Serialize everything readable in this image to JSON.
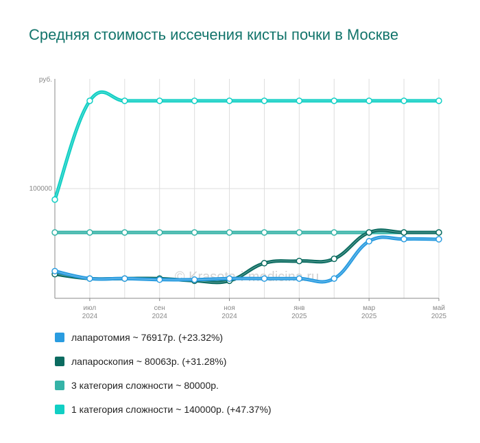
{
  "title": "Средняя стоимость иссечения кисты почки в Москве",
  "watermark": "© Krasota-i-medicina.ru",
  "colors": {
    "laparotomy": "#2a9ce0",
    "laparoscopy": "#0b6b60",
    "cat3": "#35b3a7",
    "cat1": "#11cfc4",
    "grid": "#dddddd",
    "axis": "#888888"
  },
  "legend": [
    {
      "label": "лапаротомия ~ 76917р. (+23.32%)",
      "color": "#2a9ce0"
    },
    {
      "label": "лапароскопия ~ 80063р. (+31.28%)",
      "color": "#0b6b60"
    },
    {
      "label": "3 категория сложности ~ 80000р.",
      "color": "#35b3a7"
    },
    {
      "label": "1 категория сложности ~ 140000р. (+47.37%)",
      "color": "#11cfc4"
    }
  ],
  "chart_data": {
    "type": "line",
    "title": "Средняя стоимость иссечения кисты почки в Москве",
    "ylabel": "руб.",
    "y_ticks": [
      100000
    ],
    "ylim": [
      50000,
      150000
    ],
    "x": [
      "2024-06-01",
      "2024-07-01",
      "2024-08-01",
      "2024-09-01",
      "2024-10-01",
      "2024-11-01",
      "2024-12-01",
      "2025-01-01",
      "2025-02-01",
      "2025-03-01",
      "2025-04-01",
      "2025-05-01"
    ],
    "x_tick_labels": [
      {
        "month": "июл",
        "year": "2024",
        "index": 1
      },
      {
        "month": "сен",
        "year": "2024",
        "index": 3
      },
      {
        "month": "ноя",
        "year": "2024",
        "index": 5
      },
      {
        "month": "янв",
        "year": "2025",
        "index": 7
      },
      {
        "month": "мар",
        "year": "2025",
        "index": 9
      },
      {
        "month": "май",
        "year": "2025",
        "index": 11
      }
    ],
    "series": [
      {
        "name": "3 категория сложности",
        "color": "#35b3a7",
        "values": [
          80000,
          80000,
          80000,
          80000,
          80000,
          80000,
          80000,
          80000,
          80000,
          80000,
          80000,
          80000
        ]
      },
      {
        "name": "лапароскопия",
        "color": "#0b6b60",
        "values": [
          61000,
          59000,
          59000,
          59000,
          58000,
          58000,
          66000,
          67000,
          68000,
          80000,
          80000,
          80000
        ]
      },
      {
        "name": "лапаротомия",
        "color": "#2a9ce0",
        "values": [
          62400,
          59000,
          59000,
          58500,
          58500,
          59000,
          59000,
          59000,
          59000,
          76000,
          77000,
          76900
        ]
      },
      {
        "name": "1 категория сложности",
        "color": "#11cfc4",
        "values": [
          95000,
          140000,
          140000,
          140000,
          140000,
          140000,
          140000,
          140000,
          140000,
          140000,
          140000,
          140000
        ]
      }
    ]
  }
}
